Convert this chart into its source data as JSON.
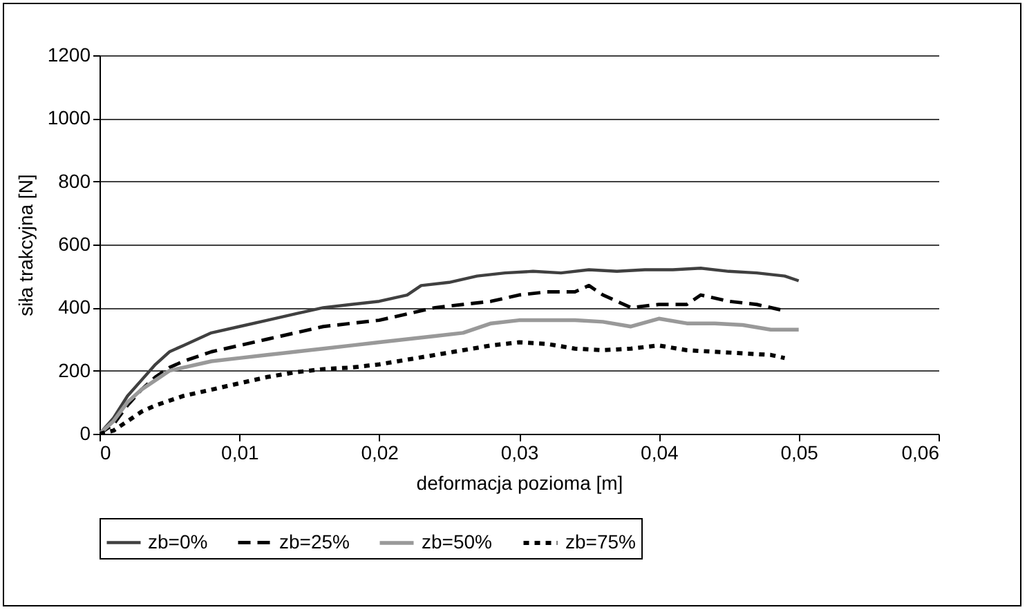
{
  "chart_data": {
    "type": "line",
    "xlabel": "deformacja pozioma [m]",
    "ylabel": "siła trakcyjna [N]",
    "xlim": [
      0,
      0.06
    ],
    "xticks": [
      0,
      {
        "value": 0.01,
        "label": "0,01"
      },
      {
        "value": 0.02,
        "label": "0,02"
      },
      {
        "value": 0.03,
        "label": "0,03"
      },
      {
        "value": 0.04,
        "label": "0,04"
      },
      {
        "value": 0.05,
        "label": "0,05"
      },
      {
        "value": 0.06,
        "label": "0,06"
      }
    ],
    "ylim": [
      0,
      1200
    ],
    "yticks": [
      0,
      200,
      400,
      600,
      800,
      1000,
      1200
    ],
    "grid": "y",
    "legend": "bottom",
    "marker": "none",
    "series": [
      {
        "name": "zb=0%",
        "color": "#404040",
        "line_style": "solid",
        "x": [
          0,
          0.001,
          0.002,
          0.003,
          0.004,
          0.005,
          0.006,
          0.007,
          0.008,
          0.01,
          0.012,
          0.014,
          0.016,
          0.018,
          0.02,
          0.022,
          0.023,
          0.025,
          0.027,
          0.029,
          0.031,
          0.033,
          0.035,
          0.037,
          0.039,
          0.041,
          0.043,
          0.045,
          0.047,
          0.049,
          0.05
        ],
        "values": [
          0,
          50,
          120,
          170,
          220,
          260,
          280,
          300,
          320,
          340,
          360,
          380,
          400,
          410,
          420,
          440,
          470,
          480,
          500,
          510,
          515,
          510,
          520,
          515,
          520,
          520,
          525,
          515,
          510,
          500,
          485
        ]
      },
      {
        "name": "zb=25%",
        "color": "#000000",
        "line_style": "dashed",
        "x": [
          0,
          0.001,
          0.002,
          0.003,
          0.004,
          0.005,
          0.006,
          0.008,
          0.01,
          0.012,
          0.014,
          0.016,
          0.018,
          0.02,
          0.022,
          0.024,
          0.026,
          0.028,
          0.03,
          0.032,
          0.034,
          0.035,
          0.036,
          0.037,
          0.038,
          0.04,
          0.042,
          0.043,
          0.045,
          0.047,
          0.049
        ],
        "values": [
          0,
          30,
          90,
          140,
          180,
          210,
          230,
          260,
          280,
          300,
          320,
          340,
          350,
          360,
          380,
          400,
          410,
          420,
          440,
          450,
          450,
          470,
          440,
          420,
          400,
          410,
          410,
          440,
          420,
          410,
          390
        ]
      },
      {
        "name": "zb=50%",
        "color": "#999999",
        "line_style": "solid",
        "x": [
          0,
          0.001,
          0.002,
          0.003,
          0.004,
          0.005,
          0.006,
          0.008,
          0.01,
          0.012,
          0.014,
          0.016,
          0.018,
          0.02,
          0.022,
          0.024,
          0.026,
          0.028,
          0.03,
          0.032,
          0.034,
          0.036,
          0.038,
          0.04,
          0.042,
          0.044,
          0.046,
          0.048,
          0.05
        ],
        "values": [
          0,
          40,
          100,
          140,
          170,
          200,
          210,
          230,
          240,
          250,
          260,
          270,
          280,
          290,
          300,
          310,
          320,
          350,
          360,
          360,
          360,
          355,
          340,
          365,
          350,
          350,
          345,
          330,
          330
        ]
      },
      {
        "name": "zb=75%",
        "color": "#000000",
        "line_style": "dotted",
        "x": [
          0,
          0.001,
          0.002,
          0.003,
          0.004,
          0.006,
          0.008,
          0.01,
          0.012,
          0.014,
          0.016,
          0.018,
          0.02,
          0.022,
          0.024,
          0.026,
          0.028,
          0.03,
          0.032,
          0.034,
          0.036,
          0.038,
          0.04,
          0.042,
          0.044,
          0.046,
          0.048,
          0.049
        ],
        "values": [
          0,
          10,
          40,
          70,
          90,
          120,
          140,
          160,
          180,
          195,
          205,
          210,
          220,
          235,
          250,
          265,
          280,
          290,
          285,
          270,
          265,
          270,
          280,
          265,
          260,
          255,
          250,
          240
        ]
      }
    ]
  }
}
